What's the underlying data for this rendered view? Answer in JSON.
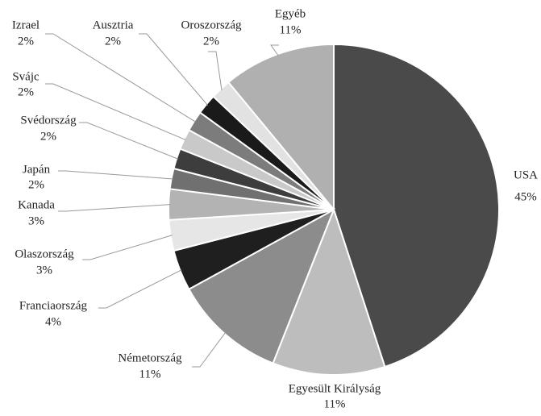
{
  "chart_data": {
    "type": "pie",
    "categories": [
      "USA",
      "Egyesült Királyság",
      "Németország",
      "Franciaország",
      "Olaszország",
      "Kanada",
      "Japán",
      "Svédország",
      "Svájc",
      "Izrael",
      "Ausztria",
      "Oroszország",
      "Egyéb"
    ],
    "values": [
      45,
      11,
      11,
      4,
      3,
      3,
      2,
      2,
      2,
      2,
      2,
      2,
      11
    ],
    "value_labels": [
      "45%",
      "11%",
      "11%",
      "4%",
      "3%",
      "3%",
      "2%",
      "2%",
      "2%",
      "2%",
      "2%",
      "2%",
      "11%"
    ],
    "colors": [
      "#4a4a4a",
      "#bdbdbd",
      "#8c8c8c",
      "#1f1f1f",
      "#e6e6e6",
      "#b3b3b3",
      "#707070",
      "#3d3d3d",
      "#c9c9c9",
      "#7c7c7c",
      "#1a1a1a",
      "#e2e2e2",
      "#b0b0b0"
    ]
  }
}
